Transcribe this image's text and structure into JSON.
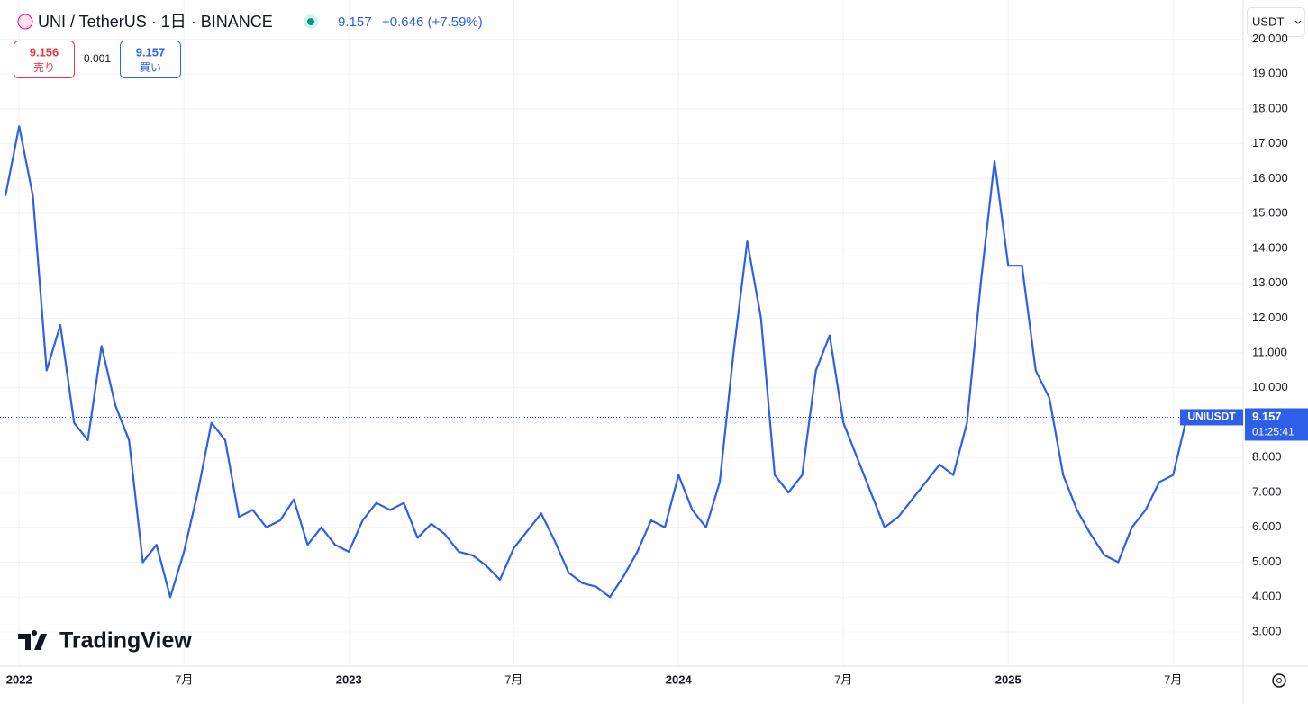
{
  "header": {
    "symbol": "UNI / TetherUS · 1日 · BINANCE",
    "price": "9.157",
    "change": "+0.646 (+7.59%)",
    "sell_price": "9.156",
    "sell_label": "売り",
    "spread": "0.001",
    "buy_price": "9.157",
    "buy_label": "買い",
    "currency": "USDT",
    "logo": "TradingView",
    "last_price": "9.157",
    "countdown": "01:25:41"
  },
  "chart_data": {
    "type": "line",
    "categories": [
      null,
      "2022",
      null,
      null,
      null,
      null,
      null,
      null,
      null,
      null,
      null,
      null,
      null,
      "7月",
      null,
      null,
      null,
      null,
      null,
      null,
      null,
      null,
      null,
      null,
      null,
      "2023",
      null,
      null,
      null,
      null,
      null,
      null,
      null,
      null,
      null,
      null,
      null,
      "7月",
      null,
      null,
      null,
      null,
      null,
      null,
      null,
      null,
      null,
      null,
      null,
      "2024",
      null,
      null,
      null,
      null,
      null,
      null,
      null,
      null,
      null,
      null,
      null,
      "7月",
      null,
      null,
      null,
      null,
      null,
      null,
      null,
      null,
      null,
      null,
      null,
      "2025",
      null,
      null,
      null,
      null,
      null,
      null,
      null,
      null,
      null,
      null,
      null,
      "7月",
      null
    ],
    "series": [
      {
        "name": "UNIUSDT",
        "color": "#2e5fe8",
        "values": [
          15.5,
          17.5,
          15.5,
          10.5,
          11.8,
          9.0,
          8.5,
          11.2,
          9.5,
          8.5,
          5.0,
          5.5,
          4.0,
          5.3,
          7.0,
          9.0,
          8.5,
          6.3,
          6.5,
          6.0,
          6.2,
          6.8,
          5.5,
          6.0,
          5.5,
          5.3,
          6.2,
          6.7,
          6.5,
          6.7,
          5.7,
          6.1,
          5.8,
          5.3,
          5.2,
          4.9,
          4.5,
          5.4,
          5.9,
          6.4,
          5.6,
          4.7,
          4.4,
          4.3,
          4.0,
          4.6,
          5.3,
          6.2,
          6.0,
          7.5,
          6.5,
          6.0,
          7.3,
          11.0,
          14.2,
          12.0,
          7.5,
          7.0,
          7.5,
          10.5,
          11.5,
          9.0,
          8.0,
          7.0,
          6.0,
          6.3,
          6.8,
          7.3,
          7.8,
          7.5,
          9.0,
          13.0,
          16.5,
          13.5,
          13.5,
          10.5,
          9.7,
          7.5,
          6.5,
          5.8,
          5.2,
          5.0,
          6.0,
          6.5,
          7.3,
          7.5,
          9.157
        ]
      }
    ],
    "ylim": [
      2.02,
      20.99
    ],
    "yticks": [
      {
        "value": 3,
        "label": "3.000"
      },
      {
        "value": 4,
        "label": "4.000"
      },
      {
        "value": 5,
        "label": "5.000"
      },
      {
        "value": 6,
        "label": "6.000"
      },
      {
        "value": 7,
        "label": "7.000"
      },
      {
        "value": 8,
        "label": "8.000"
      },
      {
        "value": 9,
        "label": "9.000"
      },
      {
        "value": 10,
        "label": "10.000"
      },
      {
        "value": 11,
        "label": "11.000"
      },
      {
        "value": 12,
        "label": "12.000"
      },
      {
        "value": 13,
        "label": "13.000"
      },
      {
        "value": 14,
        "label": "14.000"
      },
      {
        "value": 15,
        "label": "15.000"
      },
      {
        "value": 16,
        "label": "16.000"
      },
      {
        "value": 17,
        "label": "17.000"
      },
      {
        "value": 18,
        "label": "18.000"
      },
      {
        "value": 19,
        "label": "19.000"
      },
      {
        "value": 20,
        "label": "20.000"
      }
    ],
    "grid": true
  }
}
